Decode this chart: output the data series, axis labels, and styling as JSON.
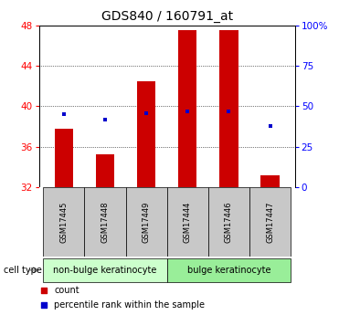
{
  "title": "GDS840 / 160791_at",
  "samples": [
    "GSM17445",
    "GSM17448",
    "GSM17449",
    "GSM17444",
    "GSM17446",
    "GSM17447"
  ],
  "groups": [
    {
      "name": "non-bulge keratinocyte",
      "color": "#ccffcc",
      "samples": [
        0,
        1,
        2
      ]
    },
    {
      "name": "bulge keratinocyte",
      "color": "#99ee99",
      "samples": [
        3,
        4,
        5
      ]
    }
  ],
  "bar_bottoms": [
    32,
    32,
    32,
    32,
    32,
    32
  ],
  "bar_tops": [
    37.8,
    35.3,
    42.5,
    47.5,
    47.5,
    33.2
  ],
  "percentile_pct": [
    45,
    42,
    46,
    47,
    47,
    38
  ],
  "ylim_left": [
    32,
    48
  ],
  "ylim_right": [
    0,
    100
  ],
  "yticks_left": [
    32,
    36,
    40,
    44,
    48
  ],
  "yticks_right": [
    0,
    25,
    50,
    75,
    100
  ],
  "ytick_labels_right": [
    "0",
    "25",
    "50",
    "75",
    "100%"
  ],
  "bar_color": "#cc0000",
  "percentile_color": "#0000cc",
  "bar_width": 0.45,
  "bg_color": "#ffffff",
  "plot_bg": "#ffffff",
  "gray_color": "#c8c8c8",
  "cell_type_label": "cell type",
  "legend_count": "count",
  "legend_percentile": "percentile rank within the sample",
  "title_fontsize": 10,
  "tick_fontsize": 7.5,
  "sample_fontsize": 6,
  "group_fontsize": 7,
  "legend_fontsize": 7
}
